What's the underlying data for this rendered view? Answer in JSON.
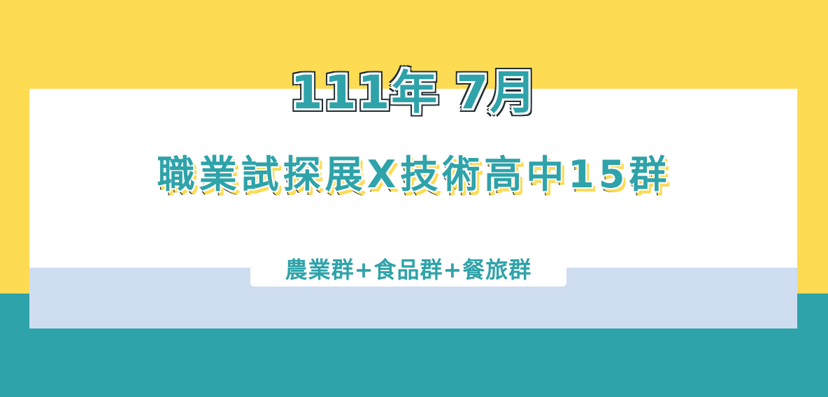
{
  "colors": {
    "yellow": "#fddb53",
    "teal": "#2ea3a9",
    "lightblue": "#cfddf1",
    "white": "#ffffff"
  },
  "banner": {
    "date_title": "111年 7月",
    "main_title": "職業試探展X技術高中15群",
    "subtitle": "農業群+食品群+餐旅群"
  }
}
